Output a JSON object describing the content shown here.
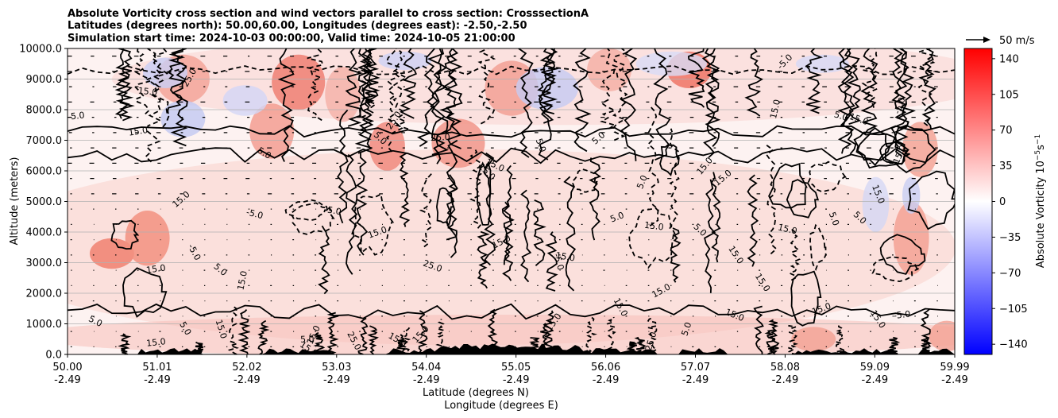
{
  "chart_data": {
    "type": "heatmap",
    "title_lines": [
      "Absolute Vorticity cross section and wind vectors parallel to cross section: CrosssectionA",
      "Latitudes (degrees north): 50.00,60.00, Longitudes (degrees east): -2.50,-2.50",
      "Simulation start time: 2024-10-03 00:00:00, Valid time: 2024-10-05 21:00:00"
    ],
    "ylabel": "Altitude (meters)",
    "xlabel_lines": [
      "Latitude (degrees N)",
      "Longitude (degrees E)"
    ],
    "x_range": [
      50.0,
      59.99
    ],
    "ylim": [
      0,
      10000
    ],
    "y_ticks": [
      "0.0",
      "1000.0",
      "2000.0",
      "3000.0",
      "4000.0",
      "5000.0",
      "6000.0",
      "7000.0",
      "8000.0",
      "9000.0",
      "10000.0"
    ],
    "x_ticks": [
      {
        "lat": "50.00",
        "lon": "-2.49"
      },
      {
        "lat": "51.01",
        "lon": "-2.49"
      },
      {
        "lat": "52.02",
        "lon": "-2.49"
      },
      {
        "lat": "53.03",
        "lon": "-2.49"
      },
      {
        "lat": "54.04",
        "lon": "-2.49"
      },
      {
        "lat": "55.05",
        "lon": "-2.49"
      },
      {
        "lat": "56.06",
        "lon": "-2.49"
      },
      {
        "lat": "57.07",
        "lon": "-2.49"
      },
      {
        "lat": "58.08",
        "lon": "-2.49"
      },
      {
        "lat": "59.09",
        "lon": "-2.49"
      },
      {
        "lat": "59.99",
        "lon": "-2.49"
      }
    ],
    "grid": "horizontal",
    "quiver_key": "50 m/s",
    "colorbar": {
      "label": "Absolute Vorticity 10",
      "label_exp": "−5",
      "label_unit": "s",
      "label_unit_exp": "−1",
      "range": [
        -150,
        150
      ],
      "ticks": [
        "140",
        "105",
        "70",
        "35",
        "0",
        "−35",
        "−70",
        "−105",
        "−140"
      ],
      "tick_values": [
        140,
        105,
        70,
        35,
        0,
        -35,
        -70,
        -105,
        -140
      ],
      "colormap": "bwr"
    },
    "contour_levels": [
      "-5.0",
      "5.0",
      "15.0",
      "25.0"
    ],
    "contour_labels": [
      {
        "text": "15.0",
        "lat": 51.0,
        "alt": 300
      },
      {
        "text": "5.0",
        "lat": 50.3,
        "alt": 1000
      },
      {
        "text": "15.0",
        "lat": 51.0,
        "alt": 2700
      },
      {
        "text": "-5.0",
        "lat": 51.4,
        "alt": 3300
      },
      {
        "text": "5.0",
        "lat": 51.7,
        "alt": 2700
      },
      {
        "text": "15.0",
        "lat": 52.0,
        "alt": 2400
      },
      {
        "text": "-5.0",
        "lat": 52.1,
        "alt": 4500
      },
      {
        "text": "15.0",
        "lat": 51.3,
        "alt": 5000
      },
      {
        "text": "25.0",
        "lat": 51.4,
        "alt": 9000
      },
      {
        "text": "15.0",
        "lat": 50.9,
        "alt": 8500
      },
      {
        "text": "-5.0",
        "lat": 50.1,
        "alt": 7700
      },
      {
        "text": "15.0",
        "lat": 50.8,
        "alt": 7200
      },
      {
        "text": "5.0",
        "lat": 52.2,
        "alt": 6500
      },
      {
        "text": "25.0",
        "lat": 53.7,
        "alt": 7600
      },
      {
        "text": "5.0",
        "lat": 53.5,
        "alt": 7000
      },
      {
        "text": "25.0",
        "lat": 54.2,
        "alt": 7000
      },
      {
        "text": "15.0",
        "lat": 54.8,
        "alt": 6100
      },
      {
        "text": "15.0",
        "lat": 54.7,
        "alt": 5900
      },
      {
        "text": "5.0",
        "lat": 55.3,
        "alt": 6800
      },
      {
        "text": "5.0",
        "lat": 56.0,
        "alt": 7000
      },
      {
        "text": "5.0",
        "lat": 56.5,
        "alt": 5600
      },
      {
        "text": "15.0",
        "lat": 57.2,
        "alt": 6100
      },
      {
        "text": "15.0",
        "lat": 57.4,
        "alt": 5700
      },
      {
        "text": "5.0",
        "lat": 58.9,
        "alt": 4400
      },
      {
        "text": "15.0",
        "lat": 58.1,
        "alt": 4000
      },
      {
        "text": "5.0",
        "lat": 56.2,
        "alt": 4400
      },
      {
        "text": "15.0",
        "lat": 56.6,
        "alt": 4100
      },
      {
        "text": "5.0",
        "lat": 57.1,
        "alt": 4000
      },
      {
        "text": "15.0",
        "lat": 57.5,
        "alt": 3200
      },
      {
        "text": "15.0",
        "lat": 53.5,
        "alt": 3900
      },
      {
        "text": "25.0",
        "lat": 54.1,
        "alt": 2800
      },
      {
        "text": "15.0",
        "lat": 54.9,
        "alt": 3600
      },
      {
        "text": "15.0",
        "lat": 55.6,
        "alt": 3100
      },
      {
        "text": "15.0",
        "lat": 56.7,
        "alt": 2000
      },
      {
        "text": "15.0",
        "lat": 57.8,
        "alt": 2300
      },
      {
        "text": "15.0",
        "lat": 57.5,
        "alt": 1200
      },
      {
        "text": "15.0",
        "lat": 56.2,
        "alt": 1500
      },
      {
        "text": "25.0",
        "lat": 56.6,
        "alt": 400
      },
      {
        "text": "5.0",
        "lat": 57.0,
        "alt": 800
      },
      {
        "text": "15.0",
        "lat": 58.5,
        "alt": 1400
      },
      {
        "text": "15.0",
        "lat": 59.1,
        "alt": 1100
      },
      {
        "text": "-5.0",
        "lat": 59.4,
        "alt": 1200
      },
      {
        "text": "15.0",
        "lat": 58.0,
        "alt": 8000
      },
      {
        "text": "5.0",
        "lat": 58.7,
        "alt": 7700
      },
      {
        "text": "15.0",
        "lat": 58.9,
        "alt": 7600
      },
      {
        "text": "-5.0",
        "lat": 59.4,
        "alt": 8100
      },
      {
        "text": "15.0",
        "lat": 59.4,
        "alt": 6500
      },
      {
        "text": "5.0",
        "lat": 58.6,
        "alt": 4400
      },
      {
        "text": "15.0",
        "lat": 59.1,
        "alt": 5200
      },
      {
        "text": "15.0",
        "lat": 53.7,
        "alt": 400
      },
      {
        "text": "15.0",
        "lat": 54.0,
        "alt": 600
      },
      {
        "text": "25.0",
        "lat": 53.2,
        "alt": 400
      },
      {
        "text": "5.0",
        "lat": 52.7,
        "alt": 400
      },
      {
        "text": "15.0",
        "lat": 52.8,
        "alt": 600
      },
      {
        "text": "15.0",
        "lat": 52.7,
        "alt": 100
      },
      {
        "text": "5.0",
        "lat": 51.3,
        "alt": 800
      },
      {
        "text": "15.0",
        "lat": 51.7,
        "alt": 800
      },
      {
        "text": "15.0",
        "lat": 55.5,
        "alt": 1000
      },
      {
        "text": "-5.0",
        "lat": 55.5,
        "alt": 3000
      },
      {
        "text": "-5.0",
        "lat": 58.1,
        "alt": 9500
      },
      {
        "text": "5.0",
        "lat": 53.0,
        "alt": 4600
      }
    ]
  },
  "icons": {
    "quiver_key_arrow": "arrow-right-icon"
  },
  "colors": {
    "positive": "#ff0000",
    "negative": "#0000ff",
    "neutral": "#ffffff",
    "terrain": "#000000",
    "grid": "#b0b0b0"
  }
}
